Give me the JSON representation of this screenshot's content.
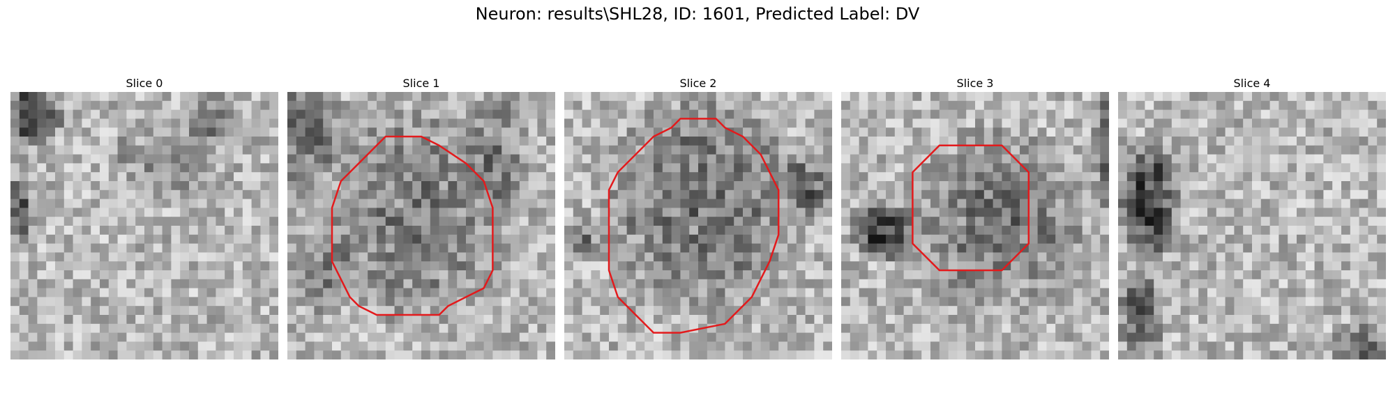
{
  "figure": {
    "title": "Neuron: results\\SHL28, ID: 1601, Predicted Label: DV",
    "colors": {
      "contour": "#e31a1c",
      "background": "#ffffff"
    },
    "panels": [
      {
        "title": "Slice 0",
        "has_contour": false
      },
      {
        "title": "Slice 1",
        "has_contour": true
      },
      {
        "title": "Slice 2",
        "has_contour": true
      },
      {
        "title": "Slice 3",
        "has_contour": true
      },
      {
        "title": "Slice 4",
        "has_contour": false
      }
    ]
  }
}
